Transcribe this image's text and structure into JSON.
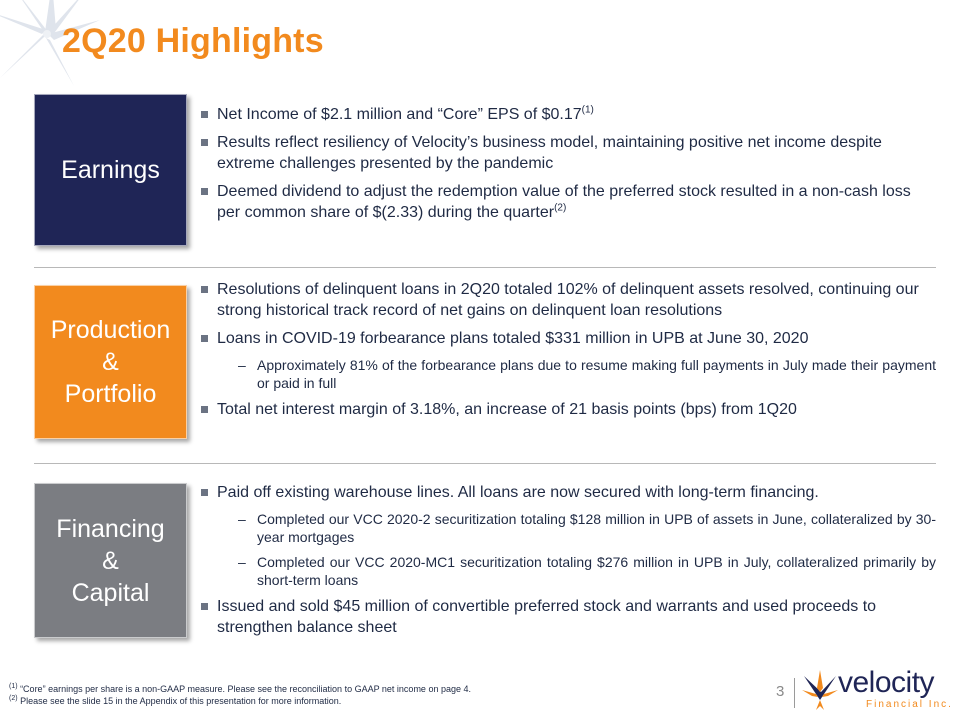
{
  "slide": {
    "title": "2Q20 Highlights",
    "page_number": "3"
  },
  "colors": {
    "accent_orange": "#f28a1e",
    "navy": "#1f2556",
    "gray": "#7b7d82"
  },
  "sections": [
    {
      "label_lines": [
        "Earnings"
      ],
      "bullets": [
        {
          "text": "Net Income of $2.1 million and “Core” EPS of $0.17",
          "sup": "(1)"
        },
        {
          "text": "Results reflect resiliency of Velocity’s business model, maintaining positive net income despite extreme challenges presented by the pandemic",
          "sup": ""
        },
        {
          "text": "Deemed dividend to adjust the redemption value of the preferred stock resulted in a non-cash loss per common share of $(2.33) during the quarter",
          "sup": "(2)"
        }
      ]
    },
    {
      "label_lines": [
        "Production",
        "&",
        "Portfolio"
      ],
      "bullets": [
        {
          "text": "Resolutions of delinquent loans in 2Q20 totaled 102% of delinquent assets resolved, continuing our strong historical track record of net gains on delinquent loan resolutions"
        },
        {
          "text": "Loans in COVID-19 forbearance plans totaled $331 million in UPB at June 30, 2020"
        },
        {
          "text": "Approximately 81% of the forbearance plans due to resume making full payments in July made their payment or paid in full"
        },
        {
          "text": "Total net interest margin of 3.18%, an increase of 21 basis points (bps) from 1Q20"
        }
      ]
    },
    {
      "label_lines": [
        "Financing",
        "&",
        "Capital"
      ],
      "bullets": [
        {
          "text": "Paid off existing warehouse lines.  All loans are now secured with long-term financing."
        },
        {
          "text": "Completed our VCC 2020-2 securitization totaling $128 million in UPB of assets in June, collateralized by 30-year mortgages"
        },
        {
          "text": "Completed our VCC 2020-MC1 securitization totaling $276 million in UPB in July, collateralized primarily by short-term loans"
        },
        {
          "text": "Issued and sold $45 million of convertible preferred stock and warrants and used proceeds to strengthen balance sheet"
        }
      ]
    }
  ],
  "footnotes": [
    {
      "marker": "(1)",
      "text": " “Core” earnings per share is a non-GAAP measure.  Please see the reconciliation to GAAP net income on page 4."
    },
    {
      "marker": "(2)",
      "text": " Please see the slide 15 in the Appendix of this presentation for more information."
    }
  ],
  "logo": {
    "wordmark": "velocity",
    "subtitle": "Financial Inc.",
    "icon": "velocity-star-logo-icon"
  },
  "decoration": {
    "icon": "starburst-icon"
  }
}
